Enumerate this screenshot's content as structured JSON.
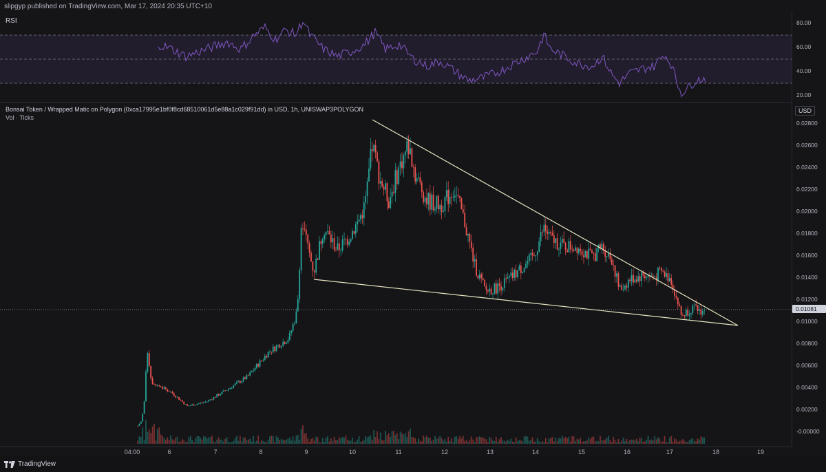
{
  "header": {
    "publisher_line": "slipgyp published on TradingView.com, Mar 17, 2024 20:35 UTC+10"
  },
  "rsi": {
    "title": "RSI",
    "axis_ticks": [
      "80.00",
      "60.00",
      "40.00",
      "20.00"
    ],
    "bands": {
      "upper": 70,
      "middle": 50,
      "lower": 30
    }
  },
  "main": {
    "legend_title": "Bonsai Token / Wrapped Matic on Polygon (0xca17995e1bf0f8cd68510061d5e88a1c029f91dd) in USD, 1h, UNISWAP3POLYGON",
    "legend_vol": "Vol · Ticks",
    "currency": "USD",
    "current_price": "0.01081",
    "axis_ticks": [
      "0.02800",
      "0.02600",
      "0.02400",
      "0.02200",
      "0.02000",
      "0.01800",
      "0.01600",
      "0.01400",
      "0.01200",
      "0.01000",
      "0.00800",
      "0.00600",
      "0.00400",
      "0.00200",
      "-0.00000"
    ]
  },
  "time_axis": {
    "labels": [
      "04:00",
      "6",
      "7",
      "8",
      "9",
      "10",
      "11",
      "12",
      "13",
      "14",
      "15",
      "16",
      "17",
      "18",
      "19"
    ]
  },
  "footer": {
    "brand": "TradingView"
  },
  "colors": {
    "up": "#26a69a",
    "down": "#ef5350",
    "rsi_line": "#7e57c2",
    "trendline": "#e8e5c0",
    "rsi_band": "#7e57c2"
  }
}
